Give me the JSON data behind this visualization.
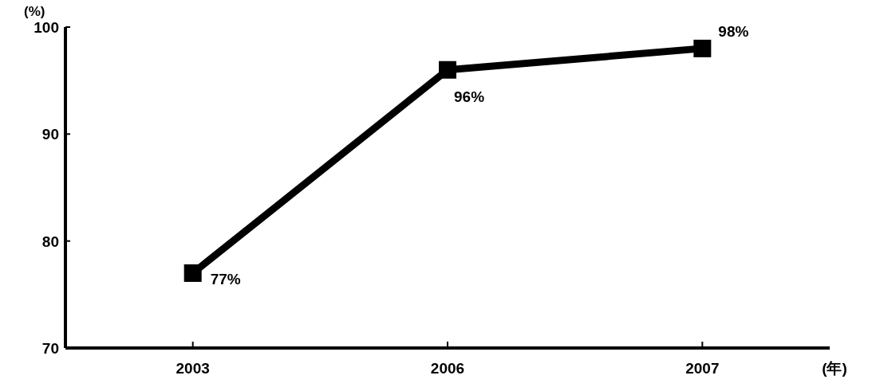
{
  "chart_data": {
    "type": "line",
    "ylabel": "(%)",
    "xlabel": "(年)",
    "categories": [
      "2003",
      "2006",
      "2007"
    ],
    "series": [
      {
        "color": "#000000",
        "values": [
          77,
          96,
          98
        ],
        "value_labels": [
          "77%",
          "96%",
          "98%"
        ]
      }
    ],
    "ylim": [
      70,
      100
    ],
    "yticks": [
      70,
      80,
      90,
      100
    ],
    "marker": "square"
  }
}
